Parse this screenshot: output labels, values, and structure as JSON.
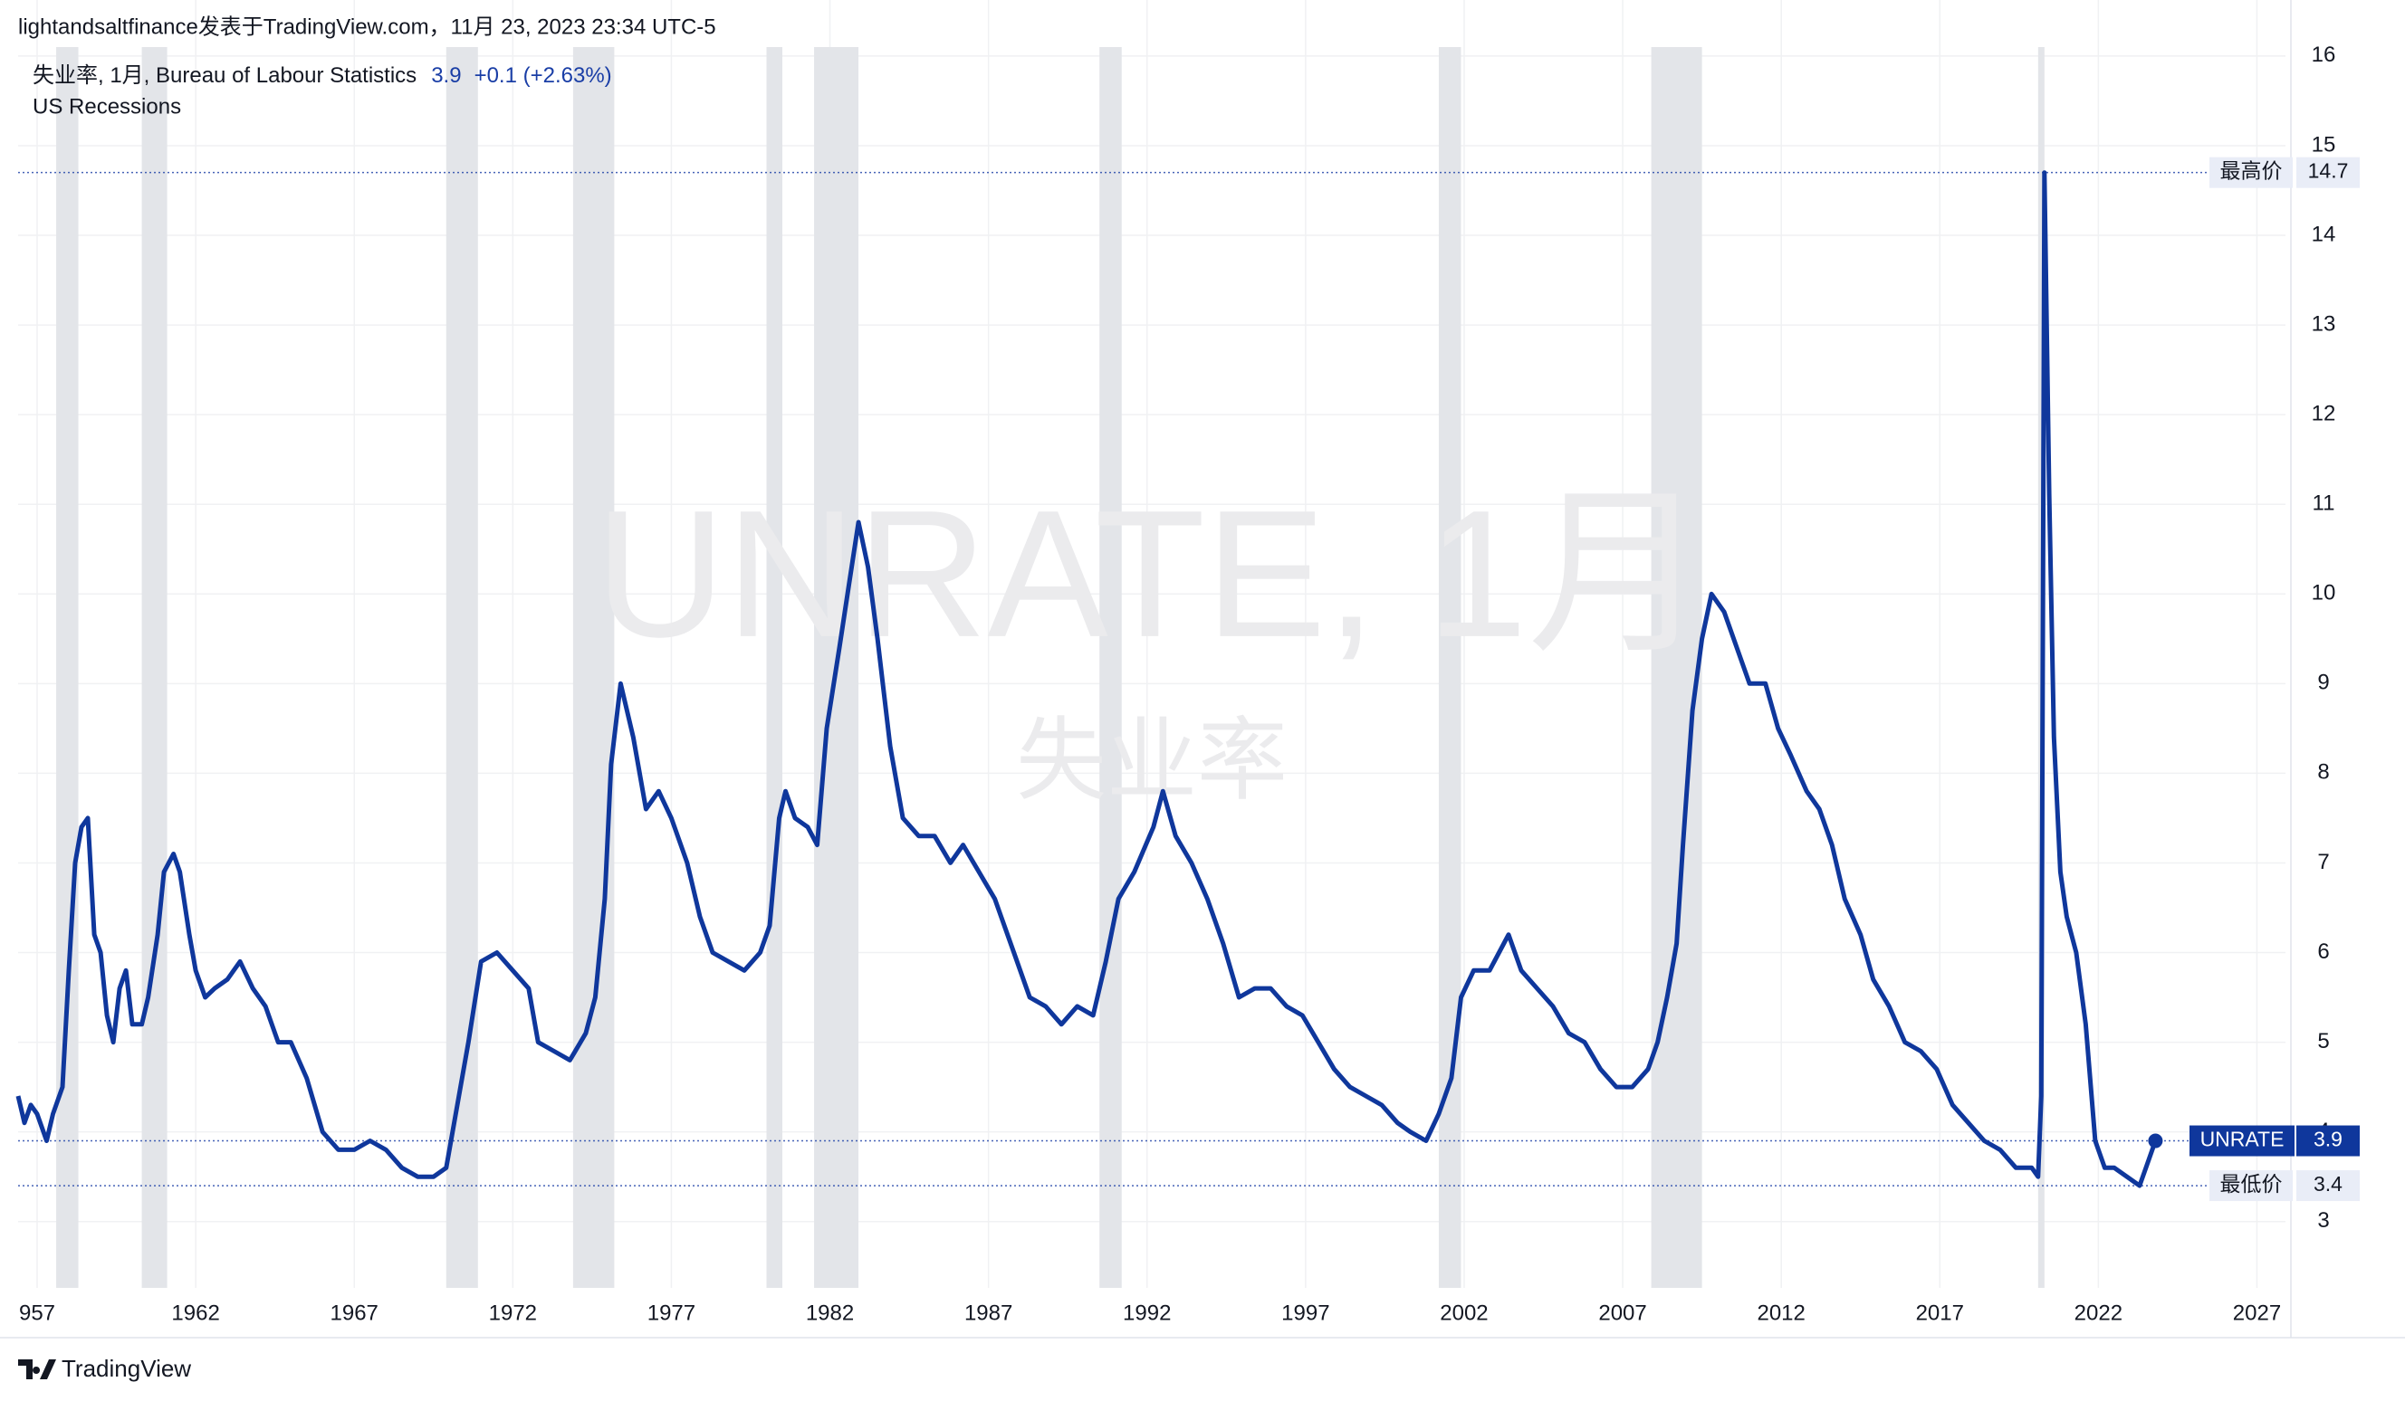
{
  "header": "lightandsaltfinance发表于TradingView.com，11月 23, 2023 23:34 UTC-5",
  "chart_data": {
    "type": "line",
    "legend_title": "失业率, 1月, Bureau of Labour Statistics",
    "legend_value": 3.9,
    "legend_change": "+0.1 (+2.63%)",
    "watermark": {
      "symbol": "UNRATE, 1月",
      "name": "失业率"
    },
    "recessions": {
      "name": "US Recessions",
      "color": "#e3e5e9",
      "periods": [
        [
          1957.6,
          1958.3
        ],
        [
          1960.3,
          1961.1
        ],
        [
          1969.9,
          1970.9
        ],
        [
          1973.9,
          1975.2
        ],
        [
          1980.0,
          1980.5
        ],
        [
          1981.5,
          1982.9
        ],
        [
          1990.5,
          1991.2
        ],
        [
          2001.2,
          2001.9
        ],
        [
          2007.9,
          2009.5
        ],
        [
          2020.1,
          2020.3
        ]
      ]
    },
    "x": [
      1956.4,
      1956.6,
      1956.8,
      1957.0,
      1957.3,
      1957.5,
      1957.8,
      1958.0,
      1958.2,
      1958.4,
      1958.6,
      1958.8,
      1959.0,
      1959.2,
      1959.4,
      1959.6,
      1959.8,
      1960.0,
      1960.3,
      1960.5,
      1960.8,
      1961.0,
      1961.3,
      1961.5,
      1961.8,
      1962.0,
      1962.3,
      1962.6,
      1963.0,
      1963.4,
      1963.8,
      1964.2,
      1964.6,
      1965.0,
      1965.5,
      1966.0,
      1966.5,
      1967.0,
      1967.5,
      1968.0,
      1968.5,
      1969.0,
      1969.5,
      1969.9,
      1970.3,
      1970.6,
      1971.0,
      1971.5,
      1972.0,
      1972.5,
      1972.8,
      1973.3,
      1973.8,
      1974.3,
      1974.6,
      1974.9,
      1975.1,
      1975.4,
      1975.8,
      1976.2,
      1976.6,
      1977.0,
      1977.5,
      1977.9,
      1978.3,
      1978.8,
      1979.3,
      1979.8,
      1980.1,
      1980.4,
      1980.6,
      1980.9,
      1981.3,
      1981.6,
      1981.9,
      1982.3,
      1982.6,
      1982.9,
      1983.2,
      1983.5,
      1983.9,
      1984.3,
      1984.8,
      1985.3,
      1985.8,
      1986.2,
      1986.7,
      1987.2,
      1987.8,
      1988.3,
      1988.8,
      1989.3,
      1989.8,
      1990.3,
      1990.7,
      1991.1,
      1991.6,
      1992.2,
      1992.5,
      1992.9,
      1993.4,
      1993.9,
      1994.4,
      1994.9,
      1995.4,
      1995.9,
      1996.4,
      1996.9,
      1997.4,
      1997.9,
      1998.4,
      1998.9,
      1999.4,
      1999.9,
      2000.3,
      2000.8,
      2001.2,
      2001.6,
      2001.9,
      2002.3,
      2002.8,
      2003.4,
      2003.8,
      2004.3,
      2004.8,
      2005.3,
      2005.8,
      2006.3,
      2006.8,
      2007.3,
      2007.8,
      2008.1,
      2008.4,
      2008.7,
      2008.9,
      2009.2,
      2009.5,
      2009.8,
      2010.2,
      2010.6,
      2011.0,
      2011.5,
      2011.9,
      2012.3,
      2012.8,
      2013.2,
      2013.6,
      2014.0,
      2014.5,
      2014.9,
      2015.4,
      2015.9,
      2016.4,
      2016.9,
      2017.4,
      2017.9,
      2018.4,
      2018.9,
      2019.4,
      2019.9,
      2020.1,
      2020.2,
      2020.3,
      2020.45,
      2020.6,
      2020.8,
      2021.0,
      2021.3,
      2021.6,
      2021.9,
      2022.2,
      2022.5,
      2022.9,
      2023.3,
      2023.5,
      2023.8
    ],
    "series": [
      {
        "name": "UNRATE",
        "color": "#0f379c",
        "values": [
          4.4,
          4.1,
          4.3,
          4.2,
          3.9,
          4.2,
          4.5,
          5.8,
          7.0,
          7.4,
          7.5,
          6.2,
          6.0,
          5.3,
          5.0,
          5.6,
          5.8,
          5.2,
          5.2,
          5.5,
          6.2,
          6.9,
          7.1,
          6.9,
          6.2,
          5.8,
          5.5,
          5.6,
          5.7,
          5.9,
          5.6,
          5.4,
          5.0,
          5.0,
          4.6,
          4.0,
          3.8,
          3.8,
          3.9,
          3.8,
          3.6,
          3.5,
          3.5,
          3.6,
          4.4,
          5.0,
          5.9,
          6.0,
          5.8,
          5.6,
          5.0,
          4.9,
          4.8,
          5.1,
          5.5,
          6.6,
          8.1,
          9.0,
          8.4,
          7.6,
          7.8,
          7.5,
          7.0,
          6.4,
          6.0,
          5.9,
          5.8,
          6.0,
          6.3,
          7.5,
          7.8,
          7.5,
          7.4,
          7.2,
          8.5,
          9.4,
          10.1,
          10.8,
          10.3,
          9.5,
          8.3,
          7.5,
          7.3,
          7.3,
          7.0,
          7.2,
          6.9,
          6.6,
          6.0,
          5.5,
          5.4,
          5.2,
          5.4,
          5.3,
          5.9,
          6.6,
          6.9,
          7.4,
          7.8,
          7.3,
          7.0,
          6.6,
          6.1,
          5.5,
          5.6,
          5.6,
          5.4,
          5.3,
          5.0,
          4.7,
          4.5,
          4.4,
          4.3,
          4.1,
          4.0,
          3.9,
          4.2,
          4.6,
          5.5,
          5.8,
          5.8,
          6.2,
          5.8,
          5.6,
          5.4,
          5.1,
          5.0,
          4.7,
          4.5,
          4.5,
          4.7,
          5.0,
          5.5,
          6.1,
          7.2,
          8.7,
          9.5,
          10.0,
          9.8,
          9.4,
          9.0,
          9.0,
          8.5,
          8.2,
          7.8,
          7.6,
          7.2,
          6.6,
          6.2,
          5.7,
          5.4,
          5.0,
          4.9,
          4.7,
          4.3,
          4.1,
          3.9,
          3.8,
          3.6,
          3.6,
          3.5,
          4.4,
          14.7,
          11.1,
          8.4,
          6.9,
          6.4,
          6.0,
          5.2,
          3.9,
          3.6,
          3.6,
          3.5,
          3.4,
          3.6,
          3.9
        ]
      }
    ],
    "markers": [
      {
        "label": "最高价",
        "value": 14.7
      },
      {
        "label": "UNRATE",
        "value": 3.9
      },
      {
        "label": "最低价",
        "value": 3.4
      }
    ],
    "xlim": [
      1956.4,
      2027.9
    ],
    "ylim": [
      2.26,
      16.12
    ],
    "xticks": [
      {
        "value": 1957,
        "label": "957"
      },
      1962,
      1967,
      1972,
      1977,
      1982,
      1987,
      1992,
      1997,
      2002,
      2007,
      2012,
      2017,
      2022,
      2027
    ],
    "yticks": [
      3,
      4,
      5,
      6,
      7,
      8,
      9,
      10,
      11,
      12,
      13,
      14,
      15,
      16
    ],
    "grid": true
  },
  "footer": "TradingView"
}
